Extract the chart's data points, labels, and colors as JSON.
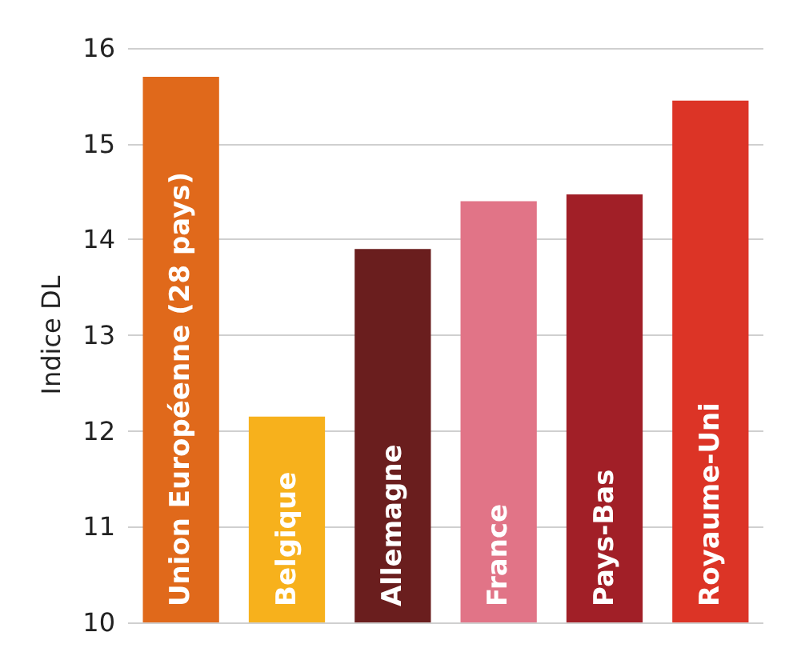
{
  "chart_data": {
    "type": "bar",
    "ylabel": "Indice DL",
    "categories": [
      "Union Européenne (28 pays)",
      "Belgique",
      "Allemagne",
      "France",
      "Pays-Bas",
      "Royaume-Uni"
    ],
    "values": [
      15.7,
      12.15,
      13.9,
      14.4,
      14.47,
      15.45
    ],
    "colors": [
      "#e0691b",
      "#f7b11c",
      "#6a1e1e",
      "#e17487",
      "#a11f27",
      "#dc3426"
    ],
    "ylim": [
      10,
      16
    ],
    "yticks": [
      10,
      11,
      12,
      13,
      14,
      15,
      16
    ],
    "grid": "y"
  }
}
